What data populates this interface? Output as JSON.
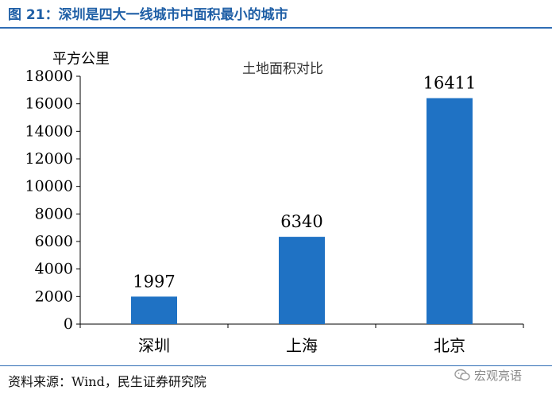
{
  "figure": {
    "title": "图 21：深圳是四大一线城市中面积最小的城市",
    "source": "资料来源：Wind，民生证券研究院",
    "watermark": "宏观亮语",
    "accent_color": "#2f6db5"
  },
  "chart_data": {
    "type": "bar",
    "title": "土地面积对比",
    "ylabel": "平方公里",
    "xlabel": "",
    "categories": [
      "深圳",
      "上海",
      "北京"
    ],
    "values": [
      1997,
      6340,
      16411
    ],
    "ylim": [
      0,
      18000
    ],
    "yticks": [
      0,
      2000,
      4000,
      6000,
      8000,
      10000,
      12000,
      14000,
      16000,
      18000
    ],
    "bar_color": "#1f72c4",
    "data_labels": true,
    "grid": false,
    "legend": "none"
  }
}
